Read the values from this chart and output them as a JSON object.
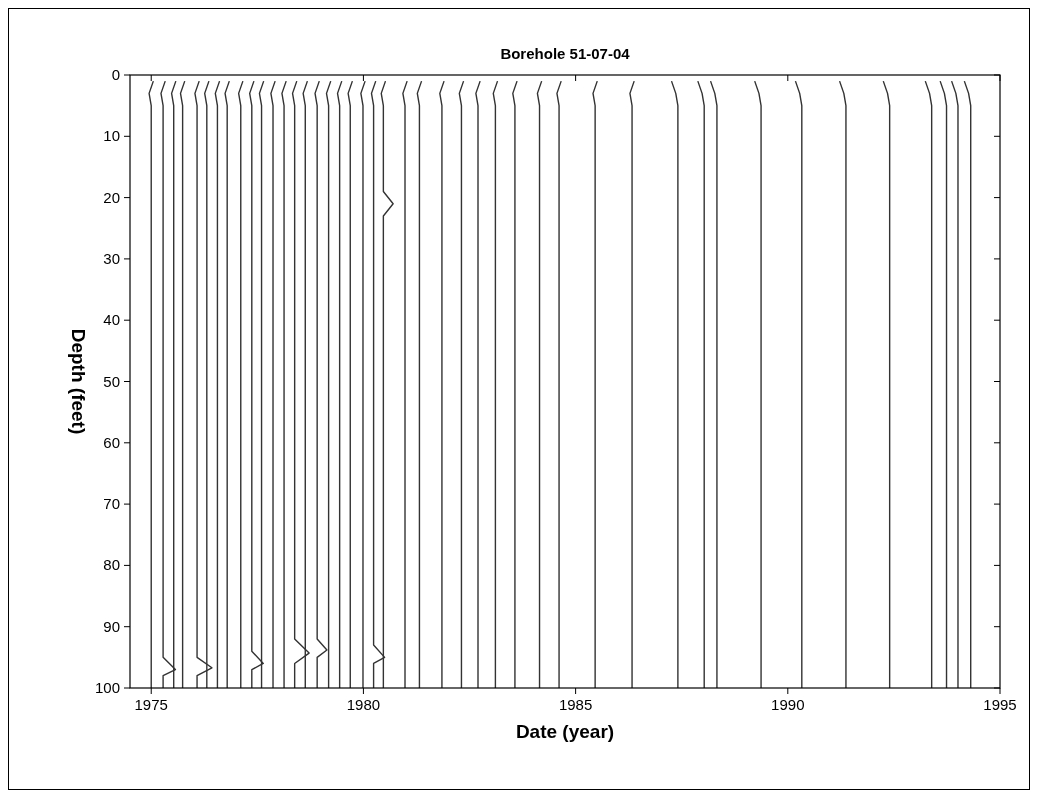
{
  "chart_data": {
    "type": "line",
    "title": "Borehole 51-07-04",
    "xlabel": "Date (year)",
    "ylabel": "Depth (feet)",
    "xlim": [
      1974.5,
      1995
    ],
    "ylim": [
      100,
      0
    ],
    "xticks": [
      1975,
      1980,
      1985,
      1990,
      1995
    ],
    "yticks": [
      0,
      10,
      20,
      30,
      40,
      50,
      60,
      70,
      80,
      90,
      100
    ],
    "marker": "none",
    "line_style": "solid",
    "series": [
      {
        "color": "#333333",
        "x": [
          1975.05,
          1974.95,
          1975.0,
          1975.0
        ],
        "values": [
          1,
          3,
          5,
          100
        ]
      },
      {
        "color": "#333333",
        "x": [
          1975.33,
          1975.23,
          1975.28,
          1975.28,
          1975.57,
          1975.28,
          1975.28
        ],
        "values": [
          1,
          3,
          5,
          95,
          97,
          98,
          100
        ]
      },
      {
        "color": "#333333",
        "x": [
          1975.58,
          1975.48,
          1975.53,
          1975.53
        ],
        "values": [
          1,
          3,
          5,
          100
        ]
      },
      {
        "color": "#333333",
        "x": [
          1975.79,
          1975.69,
          1975.74,
          1975.74
        ],
        "values": [
          1,
          3,
          5,
          100
        ]
      },
      {
        "color": "#333333",
        "x": [
          1976.13,
          1976.03,
          1976.08,
          1976.08,
          1976.43,
          1976.08,
          1976.08
        ],
        "values": [
          1,
          3,
          5,
          95,
          96.7,
          98,
          100
        ]
      },
      {
        "color": "#333333",
        "x": [
          1976.36,
          1976.26,
          1976.31,
          1976.31
        ],
        "values": [
          1,
          3,
          5,
          100
        ]
      },
      {
        "color": "#333333",
        "x": [
          1976.61,
          1976.51,
          1976.56,
          1976.56
        ],
        "values": [
          1,
          3,
          5,
          100
        ]
      },
      {
        "color": "#333333",
        "x": [
          1976.84,
          1976.74,
          1976.79,
          1976.79
        ],
        "values": [
          1,
          3,
          5,
          100
        ]
      },
      {
        "color": "#333333",
        "x": [
          1977.16,
          1977.06,
          1977.11,
          1977.11
        ],
        "values": [
          1,
          3,
          5,
          100
        ]
      },
      {
        "color": "#333333",
        "x": [
          1977.42,
          1977.32,
          1977.37,
          1977.37,
          1977.64,
          1977.37,
          1977.37
        ],
        "values": [
          1,
          3,
          5,
          94,
          96,
          97,
          100
        ]
      },
      {
        "color": "#333333",
        "x": [
          1977.65,
          1977.55,
          1977.6,
          1977.6
        ],
        "values": [
          1,
          3,
          5,
          100
        ]
      },
      {
        "color": "#333333",
        "x": [
          1977.92,
          1977.82,
          1977.87,
          1977.87
        ],
        "values": [
          1,
          3,
          5,
          100
        ]
      },
      {
        "color": "#333333",
        "x": [
          1978.18,
          1978.08,
          1978.13,
          1978.13
        ],
        "values": [
          1,
          3,
          5,
          100
        ]
      },
      {
        "color": "#333333",
        "x": [
          1978.43,
          1978.33,
          1978.38,
          1978.38,
          1978.72,
          1978.38,
          1978.38
        ],
        "values": [
          1,
          3,
          5,
          92,
          94.3,
          96,
          100
        ]
      },
      {
        "color": "#333333",
        "x": [
          1978.68,
          1978.58,
          1978.63,
          1978.63
        ],
        "values": [
          1,
          3,
          5,
          100
        ]
      },
      {
        "color": "#333333",
        "x": [
          1978.96,
          1978.86,
          1978.91,
          1978.91,
          1979.14,
          1978.91,
          1978.91
        ],
        "values": [
          1,
          3,
          5,
          92,
          93.8,
          95,
          100
        ]
      },
      {
        "color": "#333333",
        "x": [
          1979.23,
          1979.13,
          1979.18,
          1979.18
        ],
        "values": [
          1,
          3,
          5,
          100
        ]
      },
      {
        "color": "#333333",
        "x": [
          1979.49,
          1979.39,
          1979.44,
          1979.44
        ],
        "values": [
          1,
          3,
          5,
          100
        ]
      },
      {
        "color": "#333333",
        "x": [
          1979.74,
          1979.64,
          1979.69,
          1979.69
        ],
        "values": [
          1,
          3,
          5,
          100
        ]
      },
      {
        "color": "#333333",
        "x": [
          1980.04,
          1979.94,
          1979.99,
          1979.99
        ],
        "values": [
          1,
          3,
          5,
          100
        ]
      },
      {
        "color": "#333333",
        "x": [
          1980.29,
          1980.19,
          1980.24,
          1980.24,
          1980.5,
          1980.24,
          1980.24
        ],
        "values": [
          1,
          3,
          5,
          93,
          95,
          96,
          100
        ]
      },
      {
        "color": "#333333",
        "x": [
          1980.52,
          1980.42,
          1980.47,
          1980.47,
          1980.7,
          1980.47,
          1980.47
        ],
        "values": [
          1,
          3,
          5,
          19,
          21,
          23,
          100
        ]
      },
      {
        "color": "#333333",
        "x": [
          1981.03,
          1980.93,
          1980.98,
          1980.98
        ],
        "values": [
          1,
          3,
          5,
          100
        ]
      },
      {
        "color": "#333333",
        "x": [
          1981.37,
          1981.27,
          1981.32,
          1981.32
        ],
        "values": [
          1,
          3,
          5,
          100
        ]
      },
      {
        "color": "#333333",
        "x": [
          1981.9,
          1981.8,
          1981.85,
          1981.85
        ],
        "values": [
          1,
          3,
          5,
          100
        ]
      },
      {
        "color": "#333333",
        "x": [
          1982.36,
          1982.26,
          1982.31,
          1982.31
        ],
        "values": [
          1,
          3,
          5,
          100
        ]
      },
      {
        "color": "#333333",
        "x": [
          1982.75,
          1982.65,
          1982.7,
          1982.7
        ],
        "values": [
          1,
          3,
          5,
          100
        ]
      },
      {
        "color": "#333333",
        "x": [
          1983.16,
          1983.06,
          1983.11,
          1983.11
        ],
        "values": [
          1,
          3,
          5,
          100
        ]
      },
      {
        "color": "#333333",
        "x": [
          1983.62,
          1983.52,
          1983.57,
          1983.57
        ],
        "values": [
          1,
          3,
          5,
          100
        ]
      },
      {
        "color": "#333333",
        "x": [
          1984.2,
          1984.1,
          1984.15,
          1984.15
        ],
        "values": [
          1,
          3,
          5,
          100
        ]
      },
      {
        "color": "#333333",
        "x": [
          1984.66,
          1984.56,
          1984.61,
          1984.61
        ],
        "values": [
          1,
          3,
          5,
          100
        ]
      },
      {
        "color": "#333333",
        "x": [
          1985.51,
          1985.41,
          1985.46,
          1985.46
        ],
        "values": [
          1,
          3,
          5,
          100
        ]
      },
      {
        "color": "#333333",
        "x": [
          1986.38,
          1986.28,
          1986.33,
          1986.33
        ],
        "values": [
          1,
          3,
          5,
          100
        ]
      },
      {
        "color": "#333333",
        "x": [
          1987.26,
          1987.36,
          1987.41,
          1987.41
        ],
        "values": [
          1,
          3,
          5,
          100
        ]
      },
      {
        "color": "#333333",
        "x": [
          1987.88,
          1987.98,
          1988.03,
          1988.03
        ],
        "values": [
          1,
          3,
          5,
          100
        ]
      },
      {
        "color": "#333333",
        "x": [
          1988.18,
          1988.28,
          1988.33,
          1988.33
        ],
        "values": [
          1,
          3,
          5,
          100
        ]
      },
      {
        "color": "#333333",
        "x": [
          1989.22,
          1989.32,
          1989.37,
          1989.37
        ],
        "values": [
          1,
          3,
          5,
          100
        ]
      },
      {
        "color": "#333333",
        "x": [
          1990.18,
          1990.28,
          1990.33,
          1990.33
        ],
        "values": [
          1,
          3,
          5,
          100
        ]
      },
      {
        "color": "#333333",
        "x": [
          1991.22,
          1991.32,
          1991.37,
          1991.37
        ],
        "values": [
          1,
          3,
          5,
          100
        ]
      },
      {
        "color": "#333333",
        "x": [
          1992.25,
          1992.35,
          1992.4,
          1992.4
        ],
        "values": [
          1,
          3,
          5,
          100
        ]
      },
      {
        "color": "#333333",
        "x": [
          1993.24,
          1993.34,
          1993.39,
          1993.39
        ],
        "values": [
          1,
          3,
          5,
          100
        ]
      },
      {
        "color": "#333333",
        "x": [
          1993.59,
          1993.69,
          1993.74,
          1993.74
        ],
        "values": [
          1,
          3,
          5,
          100
        ]
      },
      {
        "color": "#333333",
        "x": [
          1993.86,
          1993.96,
          1994.01,
          1994.01
        ],
        "values": [
          1,
          3,
          5,
          100
        ]
      },
      {
        "color": "#333333",
        "x": [
          1994.16,
          1994.26,
          1994.31,
          1994.31
        ],
        "values": [
          1,
          3,
          5,
          100
        ]
      }
    ]
  }
}
